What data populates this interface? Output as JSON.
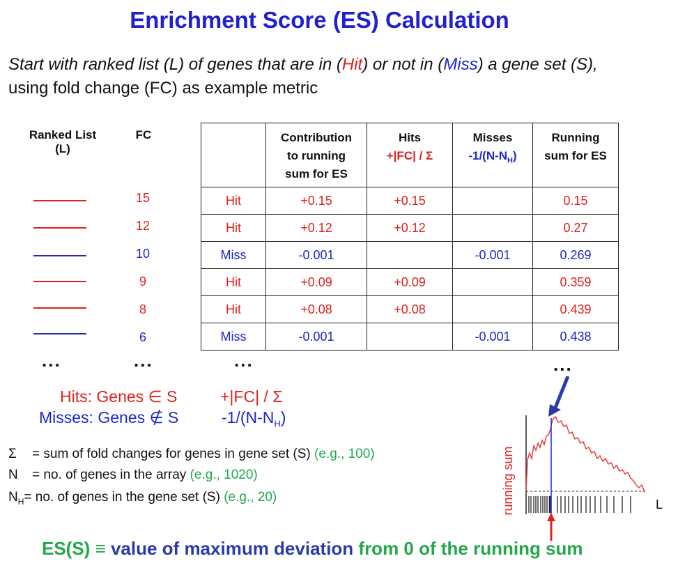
{
  "title": "Enrichment Score (ES) Calculation",
  "intro": {
    "line1_a": "Start with ranked list (L) of genes that are in (",
    "hit": "Hit",
    "line1_b": ") or not in (",
    "miss": "Miss",
    "line1_c": ") a gene set (S),",
    "line2": "using fold change (FC) as example metric"
  },
  "left_headers": {
    "ranked_list": "Ranked List",
    "ranked_list_sub": "(L)",
    "fc": "FC"
  },
  "genes": [
    {
      "fc": "15",
      "type": "hit"
    },
    {
      "fc": "12",
      "type": "hit"
    },
    {
      "fc": "10",
      "type": "miss"
    },
    {
      "fc": "9",
      "type": "hit"
    },
    {
      "fc": "8",
      "type": "hit"
    },
    {
      "fc": "6",
      "type": "miss"
    }
  ],
  "table": {
    "headers": {
      "contribution": [
        "Contribution",
        "to running",
        "sum for ES"
      ],
      "hits": "Hits",
      "hits_formula": "+|FC| / Σ",
      "misses": "Misses",
      "misses_formula_a": "-1/(N-N",
      "misses_formula_sub": "H",
      "misses_formula_b": ")",
      "running": [
        "Running",
        "sum for ES"
      ]
    },
    "rows": [
      {
        "label": "Hit",
        "contribution": "+0.15",
        "hits": "+0.15",
        "misses": "",
        "running": "0.15"
      },
      {
        "label": "Hit",
        "contribution": "+0.12",
        "hits": "+0.12",
        "misses": "",
        "running": "0.27"
      },
      {
        "label": "Miss",
        "contribution": "-0.001",
        "hits": "",
        "misses": "-0.001",
        "running": "0.269"
      },
      {
        "label": "Hit",
        "contribution": "+0.09",
        "hits": "+0.09",
        "misses": "",
        "running": "0.359"
      },
      {
        "label": "Hit",
        "contribution": "+0.08",
        "hits": "+0.08",
        "misses": "",
        "running": "0.439"
      },
      {
        "label": "Miss",
        "contribution": "-0.001",
        "hits": "",
        "misses": "-0.001",
        "running": "0.438"
      }
    ]
  },
  "ellipsis": "...",
  "legend": {
    "hits_label": "Hits: Genes ∈ S",
    "hits_formula": "+|FC| / Σ",
    "misses_label": "Misses: Genes ∉ S",
    "misses_formula_a": "-1/(N-N",
    "misses_formula_sub": "H",
    "misses_formula_b": ")"
  },
  "definitions": {
    "sigma_sym": "Σ",
    "sigma_text": "= sum of fold changes for genes in gene set (S)",
    "sigma_example": "(e.g., 100)",
    "n_sym": "N",
    "n_text": "= no. of genes in the array",
    "n_example": "(e.g., 1020)",
    "nh_sym": "N",
    "nh_sub": "H",
    "nh_text": "= no. of genes in the gene set (S)",
    "nh_example": "(e.g., 20)"
  },
  "plot": {
    "ylabel": "running sum",
    "xlabel": "L"
  },
  "conclusion": {
    "part1": "ES(S) ≡ ",
    "part2": "value of maximum deviation ",
    "part3": "from 0 of the running sum"
  },
  "colors": {
    "hit": "#e0201c",
    "miss": "#1c28c8",
    "example": "#22a84a",
    "title": "#2020d0"
  }
}
